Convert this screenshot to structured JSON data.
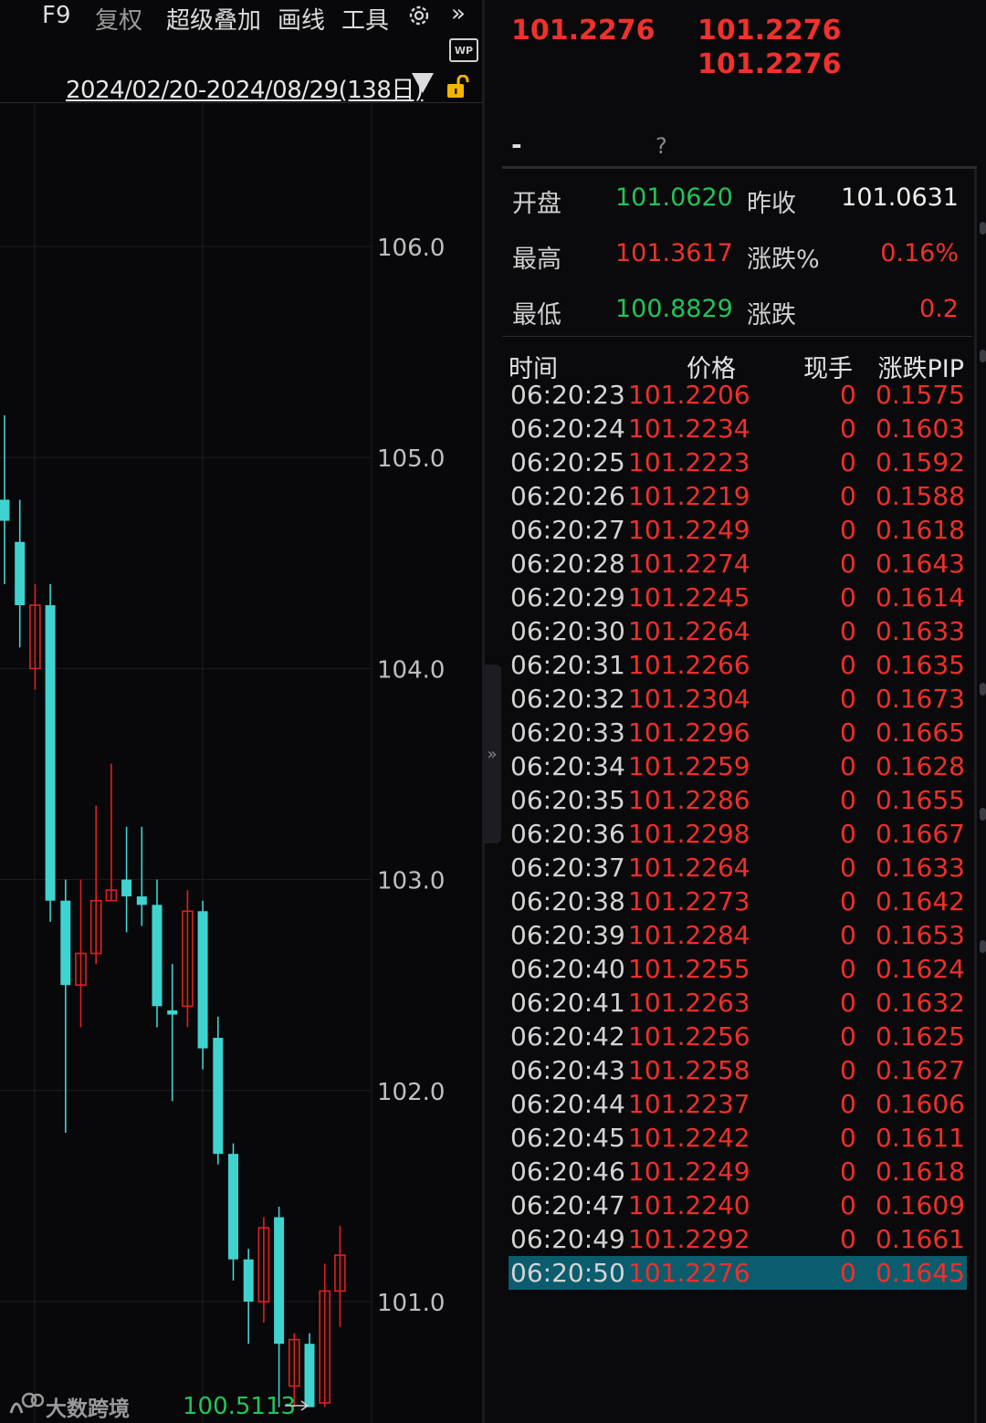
{
  "toolbar": {
    "f9": "F9",
    "fuquan": "复权",
    "overlay": "超级叠加",
    "draw": "画线",
    "tools": "工具",
    "more": "»",
    "wp": "WP"
  },
  "date_range": "2024/02/20-2024/08/29(138日)",
  "chart_data": {
    "type": "candlestick",
    "y_ticks": [
      "106.0",
      "105.0",
      "104.0",
      "103.0",
      "102.0",
      "101.0"
    ],
    "ylim": [
      100.45,
      106.65
    ],
    "low_marker": "100.5113",
    "candles": [
      {
        "o": 104.8,
        "c": 104.7,
        "h": 105.2,
        "l": 104.4
      },
      {
        "o": 104.6,
        "c": 104.3,
        "h": 104.8,
        "l": 104.1
      },
      {
        "o": 104.0,
        "c": 104.3,
        "h": 104.4,
        "l": 103.9
      },
      {
        "o": 104.3,
        "c": 102.9,
        "h": 104.4,
        "l": 102.8
      },
      {
        "o": 102.9,
        "c": 102.5,
        "h": 103.0,
        "l": 101.8
      },
      {
        "o": 102.5,
        "c": 102.65,
        "h": 103.0,
        "l": 102.3
      },
      {
        "o": 102.65,
        "c": 102.9,
        "h": 103.35,
        "l": 102.6
      },
      {
        "o": 102.9,
        "c": 102.95,
        "h": 103.55,
        "l": 102.9
      },
      {
        "o": 103.0,
        "c": 102.92,
        "h": 103.25,
        "l": 102.75
      },
      {
        "o": 102.92,
        "c": 102.88,
        "h": 103.25,
        "l": 102.78
      },
      {
        "o": 102.88,
        "c": 102.4,
        "h": 103.0,
        "l": 102.3
      },
      {
        "o": 102.38,
        "c": 102.36,
        "h": 102.6,
        "l": 101.95
      },
      {
        "o": 102.4,
        "c": 102.85,
        "h": 102.95,
        "l": 102.3
      },
      {
        "o": 102.85,
        "c": 102.2,
        "h": 102.9,
        "l": 102.1
      },
      {
        "o": 102.25,
        "c": 101.7,
        "h": 102.35,
        "l": 101.65
      },
      {
        "o": 101.7,
        "c": 101.2,
        "h": 101.75,
        "l": 101.1
      },
      {
        "o": 101.2,
        "c": 101.0,
        "h": 101.25,
        "l": 100.8
      },
      {
        "o": 101.0,
        "c": 101.35,
        "h": 101.4,
        "l": 100.9
      },
      {
        "o": 101.4,
        "c": 100.8,
        "h": 101.45,
        "l": 100.5
      },
      {
        "o": 100.6,
        "c": 100.82,
        "h": 100.85,
        "l": 100.5
      },
      {
        "o": 100.8,
        "c": 100.5,
        "h": 100.85,
        "l": 100.5
      },
      {
        "o": 100.52,
        "c": 101.05,
        "h": 101.18,
        "l": 100.5
      },
      {
        "o": 101.05,
        "c": 101.22,
        "h": 101.36,
        "l": 100.88
      }
    ],
    "colors": {
      "up": "#e02020",
      "down": "#3fd3d0",
      "grid": "#1c1c24",
      "axis": "#bfbfbf",
      "low": "#21c45a"
    }
  },
  "quote": {
    "price_1": "101.2276",
    "price_2": "101.2276",
    "price_3": "101.2276",
    "dash": "-",
    "question": "?",
    "open_label": "开盘",
    "open_value": "101.0620",
    "prev_close_label": "昨收",
    "prev_close_value": "101.0631",
    "high_label": "最高",
    "high_value": "101.3617",
    "change_pct_label": "涨跌%",
    "change_pct_value": "0.16%",
    "low_label": "最低",
    "low_value": "100.8829",
    "change_label": "涨跌",
    "change_value": "0.2"
  },
  "ticks": {
    "headers": {
      "time": "时间",
      "price": "价格",
      "volume": "现手",
      "pip": "涨跌PIP"
    },
    "rows": [
      {
        "time": "06:20:23",
        "price": "101.2206",
        "vol": "0",
        "pip": "0.1575"
      },
      {
        "time": "06:20:24",
        "price": "101.2234",
        "vol": "0",
        "pip": "0.1603"
      },
      {
        "time": "06:20:25",
        "price": "101.2223",
        "vol": "0",
        "pip": "0.1592"
      },
      {
        "time": "06:20:26",
        "price": "101.2219",
        "vol": "0",
        "pip": "0.1588"
      },
      {
        "time": "06:20:27",
        "price": "101.2249",
        "vol": "0",
        "pip": "0.1618"
      },
      {
        "time": "06:20:28",
        "price": "101.2274",
        "vol": "0",
        "pip": "0.1643"
      },
      {
        "time": "06:20:29",
        "price": "101.2245",
        "vol": "0",
        "pip": "0.1614"
      },
      {
        "time": "06:20:30",
        "price": "101.2264",
        "vol": "0",
        "pip": "0.1633"
      },
      {
        "time": "06:20:31",
        "price": "101.2266",
        "vol": "0",
        "pip": "0.1635"
      },
      {
        "time": "06:20:32",
        "price": "101.2304",
        "vol": "0",
        "pip": "0.1673"
      },
      {
        "time": "06:20:33",
        "price": "101.2296",
        "vol": "0",
        "pip": "0.1665"
      },
      {
        "time": "06:20:34",
        "price": "101.2259",
        "vol": "0",
        "pip": "0.1628"
      },
      {
        "time": "06:20:35",
        "price": "101.2286",
        "vol": "0",
        "pip": "0.1655"
      },
      {
        "time": "06:20:36",
        "price": "101.2298",
        "vol": "0",
        "pip": "0.1667"
      },
      {
        "time": "06:20:37",
        "price": "101.2264",
        "vol": "0",
        "pip": "0.1633"
      },
      {
        "time": "06:20:38",
        "price": "101.2273",
        "vol": "0",
        "pip": "0.1642"
      },
      {
        "time": "06:20:39",
        "price": "101.2284",
        "vol": "0",
        "pip": "0.1653"
      },
      {
        "time": "06:20:40",
        "price": "101.2255",
        "vol": "0",
        "pip": "0.1624"
      },
      {
        "time": "06:20:41",
        "price": "101.2263",
        "vol": "0",
        "pip": "0.1632"
      },
      {
        "time": "06:20:42",
        "price": "101.2256",
        "vol": "0",
        "pip": "0.1625"
      },
      {
        "time": "06:20:43",
        "price": "101.2258",
        "vol": "0",
        "pip": "0.1627"
      },
      {
        "time": "06:20:44",
        "price": "101.2237",
        "vol": "0",
        "pip": "0.1606"
      },
      {
        "time": "06:20:45",
        "price": "101.2242",
        "vol": "0",
        "pip": "0.1611"
      },
      {
        "time": "06:20:46",
        "price": "101.2249",
        "vol": "0",
        "pip": "0.1618"
      },
      {
        "time": "06:20:47",
        "price": "101.2240",
        "vol": "0",
        "pip": "0.1609"
      },
      {
        "time": "06:20:49",
        "price": "101.2292",
        "vol": "0",
        "pip": "0.1661"
      },
      {
        "time": "06:20:50",
        "price": "101.2276",
        "vol": "0",
        "pip": "0.1645"
      }
    ],
    "selected_index": 26
  },
  "watermark": "大数跨境"
}
